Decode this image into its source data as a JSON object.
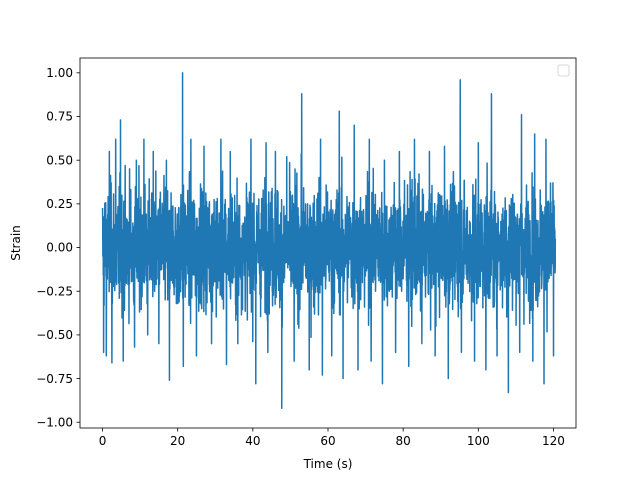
{
  "chart_data": {
    "type": "line",
    "title": "",
    "xlabel": "Time (s)",
    "ylabel": "Strain",
    "xlim": [
      -6,
      126
    ],
    "ylim": [
      -1.033,
      1.085
    ],
    "x_ticks": [
      0,
      20,
      40,
      60,
      80,
      100,
      120
    ],
    "x_tick_labels": [
      "0",
      "20",
      "40",
      "60",
      "80",
      "100",
      "120"
    ],
    "y_ticks": [
      -1.0,
      -0.75,
      -0.5,
      -0.25,
      0.0,
      0.25,
      0.5,
      0.75,
      1.0
    ],
    "y_tick_labels": [
      "−1.00",
      "−0.75",
      "−0.50",
      "−0.25",
      "0.00",
      "0.25",
      "0.50",
      "0.75",
      "1.00"
    ],
    "grid": false,
    "legend": {
      "placement": "top-right",
      "entries": []
    },
    "series": [
      {
        "color": "#1f77b4",
        "x_start": 0,
        "x_end": 120.5,
        "core_band": [
          -0.3,
          0.25
        ],
        "peaks": [
          {
            "x": 0.3,
            "y": 0.38
          },
          {
            "x": 1.0,
            "y": 0.4
          },
          {
            "x": 1.8,
            "y": 0.55
          },
          {
            "x": 3.5,
            "y": 0.62
          },
          {
            "x": 4.8,
            "y": 0.73
          },
          {
            "x": 7.2,
            "y": 0.45
          },
          {
            "x": 9.0,
            "y": 0.5
          },
          {
            "x": 11.0,
            "y": 0.62
          },
          {
            "x": 13.5,
            "y": 0.55
          },
          {
            "x": 17.0,
            "y": 0.5
          },
          {
            "x": 21.3,
            "y": 1.0
          },
          {
            "x": 23.5,
            "y": 0.62
          },
          {
            "x": 27.0,
            "y": 0.58
          },
          {
            "x": 31.5,
            "y": 0.62
          },
          {
            "x": 34.0,
            "y": 0.55
          },
          {
            "x": 39.5,
            "y": 0.62
          },
          {
            "x": 43.5,
            "y": 0.6
          },
          {
            "x": 46.0,
            "y": 0.55
          },
          {
            "x": 49.0,
            "y": 0.52
          },
          {
            "x": 53.0,
            "y": 0.88
          },
          {
            "x": 58.0,
            "y": 0.62
          },
          {
            "x": 63.0,
            "y": 0.78
          },
          {
            "x": 67.0,
            "y": 0.7
          },
          {
            "x": 71.0,
            "y": 0.62
          },
          {
            "x": 75.0,
            "y": 0.5
          },
          {
            "x": 79.0,
            "y": 0.55
          },
          {
            "x": 83.0,
            "y": 0.62
          },
          {
            "x": 87.0,
            "y": 0.55
          },
          {
            "x": 91.0,
            "y": 0.58
          },
          {
            "x": 95.2,
            "y": 0.96
          },
          {
            "x": 100.0,
            "y": 0.6
          },
          {
            "x": 103.5,
            "y": 0.88
          },
          {
            "x": 108.0,
            "y": 0.58
          },
          {
            "x": 111.5,
            "y": 0.76
          },
          {
            "x": 115.0,
            "y": 0.65
          },
          {
            "x": 118.0,
            "y": 0.62
          },
          {
            "x": 120.0,
            "y": 0.58
          }
        ],
        "troughs": [
          {
            "x": 0.3,
            "y": -0.6
          },
          {
            "x": 1.0,
            "y": -0.62
          },
          {
            "x": 2.5,
            "y": -0.66
          },
          {
            "x": 5.5,
            "y": -0.65
          },
          {
            "x": 8.5,
            "y": -0.57
          },
          {
            "x": 12.0,
            "y": -0.5
          },
          {
            "x": 15.0,
            "y": -0.55
          },
          {
            "x": 17.8,
            "y": -0.76
          },
          {
            "x": 21.5,
            "y": -0.68
          },
          {
            "x": 25.0,
            "y": -0.62
          },
          {
            "x": 29.0,
            "y": -0.55
          },
          {
            "x": 33.0,
            "y": -0.67
          },
          {
            "x": 36.0,
            "y": -0.55
          },
          {
            "x": 40.8,
            "y": -0.78
          },
          {
            "x": 44.0,
            "y": -0.6
          },
          {
            "x": 47.7,
            "y": -0.92
          },
          {
            "x": 51.0,
            "y": -0.65
          },
          {
            "x": 55.0,
            "y": -0.7
          },
          {
            "x": 58.5,
            "y": -0.73
          },
          {
            "x": 61.0,
            "y": -0.62
          },
          {
            "x": 64.0,
            "y": -0.75
          },
          {
            "x": 68.0,
            "y": -0.7
          },
          {
            "x": 71.5,
            "y": -0.65
          },
          {
            "x": 74.5,
            "y": -0.78
          },
          {
            "x": 78.0,
            "y": -0.6
          },
          {
            "x": 81.5,
            "y": -0.68
          },
          {
            "x": 85.0,
            "y": -0.55
          },
          {
            "x": 88.5,
            "y": -0.62
          },
          {
            "x": 92.0,
            "y": -0.75
          },
          {
            "x": 95.5,
            "y": -0.6
          },
          {
            "x": 99.0,
            "y": -0.65
          },
          {
            "x": 102.0,
            "y": -0.7
          },
          {
            "x": 105.0,
            "y": -0.62
          },
          {
            "x": 108.0,
            "y": -0.83
          },
          {
            "x": 111.0,
            "y": -0.6
          },
          {
            "x": 114.5,
            "y": -0.65
          },
          {
            "x": 117.5,
            "y": -0.78
          },
          {
            "x": 120.0,
            "y": -0.62
          }
        ]
      }
    ]
  }
}
